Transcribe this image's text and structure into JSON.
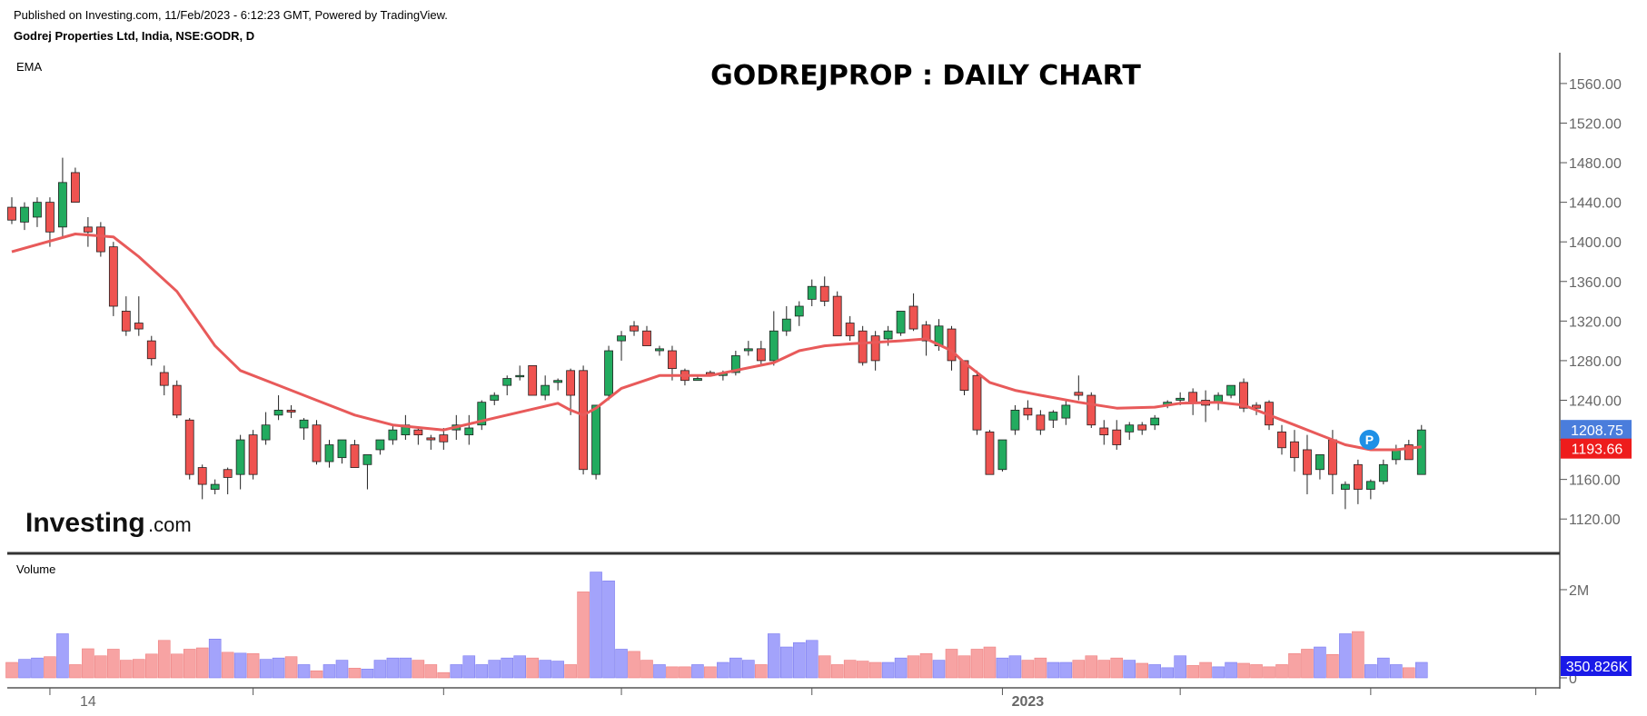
{
  "header": {
    "published": "Published on Investing.com, 11/Feb/2023 - 6:12:23 GMT, Powered by TradingView.",
    "symbol": "Godrej Properties Ltd, India, NSE:GODR, D"
  },
  "indicator_label": "EMA",
  "volume_label": "Volume",
  "logo": {
    "text": "Investing",
    "suffix": ".com"
  },
  "pin_label": "P",
  "chart_data": {
    "type": "candlestick",
    "title": "GODREJPROP : DAILY CHART",
    "price_axis": {
      "ylim": [
        1100,
        1570
      ],
      "ticks": [
        1120,
        1160,
        1200,
        1240,
        1280,
        1320,
        1360,
        1400,
        1440,
        1480,
        1520,
        1560
      ],
      "tick_labels": [
        "1120.00",
        "1160.00",
        "1240.00",
        "1280.00",
        "1320.00",
        "1360.00",
        "1400.00",
        "1440.00",
        "1480.00",
        "1520.00",
        "1560.00"
      ]
    },
    "volume_axis": {
      "ylim": [
        0,
        2700000
      ],
      "tick_labels": [
        "2M",
        "0"
      ],
      "ticks": [
        2000000,
        0
      ]
    },
    "x_tick_labels": [
      {
        "label": "14",
        "index": 6
      },
      {
        "label": "2023",
        "index": 80
      }
    ],
    "last_price_label": "1208.75",
    "ema_label": "1193.66",
    "last_volume_label": "350.826K",
    "colors": {
      "up": "#22ab5f",
      "down": "#ef5350",
      "ema": "#e85a5a",
      "vol_up": "#a3a3fb",
      "vol_down": "#f7a3a3",
      "price_badge": "#4a7ddc",
      "ema_badge": "#ee1c1c",
      "vol_badge": "#1a1ae8",
      "pin": "#1e90e6"
    },
    "candles": [
      [
        1435,
        1445,
        1418,
        1422,
        350000
      ],
      [
        1420,
        1440,
        1412,
        1435,
        420000
      ],
      [
        1425,
        1445,
        1415,
        1440,
        450000
      ],
      [
        1440,
        1445,
        1395,
        1410,
        480000
      ],
      [
        1415,
        1485,
        1405,
        1460,
        1000000
      ],
      [
        1470,
        1475,
        1440,
        1440,
        300000
      ],
      [
        1415,
        1425,
        1395,
        1410,
        660000
      ],
      [
        1415,
        1420,
        1385,
        1390,
        500000
      ],
      [
        1395,
        1400,
        1325,
        1335,
        650000
      ],
      [
        1330,
        1345,
        1305,
        1310,
        400000
      ],
      [
        1318,
        1345,
        1305,
        1312,
        420000
      ],
      [
        1300,
        1305,
        1275,
        1282,
        540000
      ],
      [
        1268,
        1275,
        1245,
        1255,
        850000
      ],
      [
        1255,
        1260,
        1222,
        1225,
        540000
      ],
      [
        1220,
        1222,
        1160,
        1165,
        650000
      ],
      [
        1172,
        1175,
        1140,
        1155,
        680000
      ],
      [
        1150,
        1160,
        1145,
        1155,
        880000
      ],
      [
        1170,
        1172,
        1145,
        1162,
        580000
      ],
      [
        1165,
        1205,
        1150,
        1200,
        560000
      ],
      [
        1205,
        1210,
        1160,
        1165,
        550000
      ],
      [
        1200,
        1228,
        1195,
        1215,
        420000
      ],
      [
        1225,
        1245,
        1220,
        1230,
        450000
      ],
      [
        1230,
        1235,
        1222,
        1228,
        480000
      ],
      [
        1212,
        1222,
        1200,
        1220,
        300000
      ],
      [
        1215,
        1220,
        1175,
        1178,
        160000
      ],
      [
        1178,
        1200,
        1172,
        1195,
        300000
      ],
      [
        1182,
        1200,
        1176,
        1200,
        400000
      ],
      [
        1195,
        1200,
        1172,
        1172,
        220000
      ],
      [
        1175,
        1185,
        1150,
        1185,
        200000
      ],
      [
        1190,
        1200,
        1185,
        1200,
        400000
      ],
      [
        1200,
        1215,
        1195,
        1210,
        450000
      ],
      [
        1205,
        1225,
        1200,
        1215,
        450000
      ],
      [
        1210,
        1212,
        1195,
        1205,
        400000
      ],
      [
        1202,
        1205,
        1190,
        1200,
        300000
      ],
      [
        1205,
        1212,
        1190,
        1198,
        120000
      ],
      [
        1210,
        1225,
        1200,
        1215,
        300000
      ],
      [
        1205,
        1225,
        1195,
        1212,
        500000
      ],
      [
        1215,
        1240,
        1210,
        1238,
        300000
      ],
      [
        1240,
        1248,
        1235,
        1245,
        400000
      ],
      [
        1255,
        1265,
        1245,
        1262,
        450000
      ],
      [
        1265,
        1275,
        1260,
        1265,
        500000
      ],
      [
        1275,
        1275,
        1245,
        1245,
        450000
      ],
      [
        1245,
        1265,
        1240,
        1255,
        400000
      ],
      [
        1258,
        1262,
        1250,
        1260,
        380000
      ],
      [
        1270,
        1272,
        1225,
        1245,
        300000
      ],
      [
        1270,
        1275,
        1165,
        1170,
        1950000
      ],
      [
        1165,
        1235,
        1160,
        1235,
        2400000
      ],
      [
        1245,
        1295,
        1240,
        1290,
        2200000
      ],
      [
        1300,
        1310,
        1280,
        1305,
        650000
      ],
      [
        1315,
        1320,
        1305,
        1310,
        600000
      ],
      [
        1310,
        1315,
        1295,
        1295,
        400000
      ],
      [
        1290,
        1295,
        1285,
        1292,
        300000
      ],
      [
        1290,
        1295,
        1260,
        1272,
        250000
      ],
      [
        1270,
        1272,
        1255,
        1260,
        250000
      ],
      [
        1260,
        1265,
        1260,
        1262,
        300000
      ],
      [
        1268,
        1270,
        1265,
        1265,
        250000
      ],
      [
        1265,
        1270,
        1260,
        1267,
        350000
      ],
      [
        1268,
        1290,
        1265,
        1285,
        450000
      ],
      [
        1290,
        1300,
        1285,
        1292,
        400000
      ],
      [
        1292,
        1300,
        1275,
        1280,
        300000
      ],
      [
        1280,
        1330,
        1275,
        1310,
        1000000
      ],
      [
        1310,
        1335,
        1305,
        1322,
        700000
      ],
      [
        1325,
        1340,
        1315,
        1335,
        800000
      ],
      [
        1342,
        1362,
        1335,
        1355,
        850000
      ],
      [
        1355,
        1365,
        1335,
        1340,
        500000
      ],
      [
        1345,
        1350,
        1305,
        1305,
        300000
      ],
      [
        1318,
        1325,
        1300,
        1305,
        400000
      ],
      [
        1310,
        1315,
        1275,
        1278,
        380000
      ],
      [
        1305,
        1310,
        1270,
        1280,
        350000
      ],
      [
        1302,
        1315,
        1295,
        1310,
        350000
      ],
      [
        1308,
        1330,
        1305,
        1330,
        450000
      ],
      [
        1335,
        1348,
        1310,
        1312,
        500000
      ],
      [
        1316,
        1320,
        1285,
        1300,
        550000
      ],
      [
        1295,
        1322,
        1290,
        1315,
        400000
      ],
      [
        1312,
        1315,
        1270,
        1280,
        650000
      ],
      [
        1280,
        1280,
        1245,
        1250,
        500000
      ],
      [
        1265,
        1270,
        1205,
        1210,
        650000
      ],
      [
        1208,
        1210,
        1165,
        1165,
        700000
      ],
      [
        1170,
        1200,
        1168,
        1200,
        450000
      ],
      [
        1210,
        1235,
        1205,
        1230,
        500000
      ],
      [
        1232,
        1240,
        1220,
        1225,
        400000
      ],
      [
        1225,
        1230,
        1205,
        1210,
        450000
      ],
      [
        1220,
        1230,
        1212,
        1228,
        350000
      ],
      [
        1222,
        1240,
        1215,
        1235,
        350000
      ],
      [
        1248,
        1265,
        1240,
        1245,
        400000
      ],
      [
        1245,
        1248,
        1212,
        1215,
        500000
      ],
      [
        1212,
        1220,
        1195,
        1205,
        400000
      ],
      [
        1210,
        1220,
        1190,
        1195,
        450000
      ],
      [
        1208,
        1218,
        1200,
        1215,
        400000
      ],
      [
        1215,
        1218,
        1205,
        1210,
        330000
      ],
      [
        1215,
        1225,
        1210,
        1222,
        300000
      ],
      [
        1235,
        1240,
        1232,
        1238,
        230000
      ],
      [
        1240,
        1248,
        1235,
        1242,
        500000
      ],
      [
        1248,
        1252,
        1225,
        1238,
        280000
      ],
      [
        1240,
        1250,
        1218,
        1235,
        350000
      ],
      [
        1238,
        1248,
        1230,
        1245,
        250000
      ],
      [
        1245,
        1255,
        1242,
        1255,
        350000
      ],
      [
        1258,
        1262,
        1228,
        1232,
        330000
      ],
      [
        1235,
        1238,
        1225,
        1232,
        300000
      ],
      [
        1238,
        1240,
        1210,
        1215,
        250000
      ],
      [
        1208,
        1215,
        1185,
        1192,
        300000
      ],
      [
        1198,
        1210,
        1168,
        1182,
        550000
      ],
      [
        1190,
        1205,
        1145,
        1165,
        650000
      ],
      [
        1170,
        1185,
        1160,
        1185,
        700000
      ],
      [
        1200,
        1210,
        1145,
        1165,
        530000
      ],
      [
        1150,
        1158,
        1130,
        1155,
        1000000
      ],
      [
        1175,
        1180,
        1135,
        1150,
        1050000
      ],
      [
        1150,
        1160,
        1140,
        1158,
        300000
      ],
      [
        1158,
        1180,
        1155,
        1175,
        450000
      ],
      [
        1180,
        1195,
        1175,
        1190,
        300000
      ],
      [
        1195,
        1200,
        1180,
        1180,
        230000
      ],
      [
        1165,
        1215,
        1165,
        1210,
        350826
      ]
    ],
    "ema": [
      [
        0,
        1390
      ],
      [
        5,
        1408
      ],
      [
        8,
        1405
      ],
      [
        10,
        1385
      ],
      [
        13,
        1350
      ],
      [
        16,
        1295
      ],
      [
        18,
        1270
      ],
      [
        21,
        1255
      ],
      [
        24,
        1240
      ],
      [
        27,
        1225
      ],
      [
        30,
        1215
      ],
      [
        34,
        1210
      ],
      [
        38,
        1222
      ],
      [
        40,
        1228
      ],
      [
        43,
        1237
      ],
      [
        44,
        1230
      ],
      [
        45,
        1225
      ],
      [
        46,
        1232
      ],
      [
        48,
        1252
      ],
      [
        51,
        1265
      ],
      [
        55,
        1265
      ],
      [
        60,
        1278
      ],
      [
        62,
        1290
      ],
      [
        64,
        1295
      ],
      [
        66,
        1297
      ],
      [
        70,
        1300
      ],
      [
        72,
        1302
      ],
      [
        74,
        1290
      ],
      [
        75,
        1278
      ],
      [
        77,
        1258
      ],
      [
        79,
        1250
      ],
      [
        81,
        1245
      ],
      [
        84,
        1238
      ],
      [
        87,
        1232
      ],
      [
        90,
        1233
      ],
      [
        92,
        1237
      ],
      [
        95,
        1238
      ],
      [
        97,
        1235
      ],
      [
        99,
        1225
      ],
      [
        101,
        1215
      ],
      [
        103,
        1205
      ],
      [
        105,
        1195
      ],
      [
        107,
        1190
      ],
      [
        109,
        1190
      ],
      [
        111,
        1193
      ]
    ]
  }
}
